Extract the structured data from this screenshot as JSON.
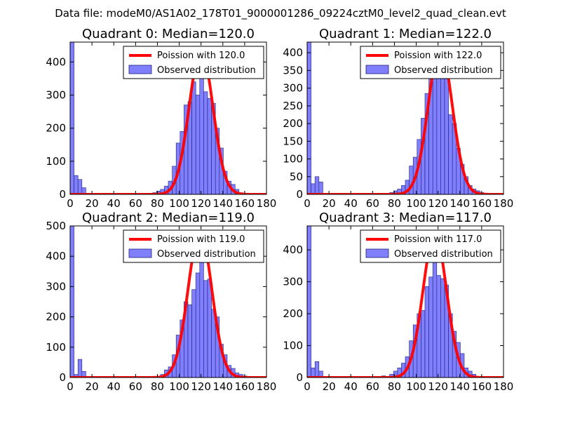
{
  "figure": {
    "suptitle": "Data file: modeM0/AS1A02_178T01_9000001286_09224cztM0_level2_quad_clean.evt"
  },
  "colors": {
    "bar_fill": "#8080ff",
    "bar_edge": "#1f1f7a",
    "curve": "#ff0000"
  },
  "chart_data": [
    {
      "type": "bar",
      "title": "Quadrant 0: Median=120.0",
      "xlim": [
        0,
        180
      ],
      "ylim": [
        0,
        460
      ],
      "xticks": [
        0,
        20,
        40,
        60,
        80,
        100,
        120,
        140,
        160,
        180
      ],
      "yticks": [
        0,
        100,
        200,
        300,
        400
      ],
      "median": 120.0,
      "bin_width": 3.6,
      "bins_x": [
        0,
        3.6,
        7.2,
        10.8,
        75.6,
        79.2,
        82.8,
        86.4,
        90,
        93.6,
        97.2,
        100.8,
        104.4,
        108,
        111.6,
        115.2,
        118.8,
        122.4,
        126,
        129.6,
        133.2,
        136.8,
        140.4,
        144,
        147.6,
        151.2,
        154.8
      ],
      "bins_y": [
        460,
        57,
        45,
        20,
        5,
        10,
        15,
        25,
        40,
        85,
        155,
        190,
        270,
        280,
        340,
        300,
        355,
        310,
        290,
        275,
        200,
        140,
        70,
        40,
        30,
        15,
        5
      ],
      "legend": [
        "Poission with 120.0",
        "Observed distribution"
      ],
      "curve_peak": 435
    },
    {
      "type": "bar",
      "title": "Quadrant 1: Median=122.0",
      "xlim": [
        0,
        180
      ],
      "ylim": [
        0,
        430
      ],
      "xticks": [
        0,
        20,
        40,
        60,
        80,
        100,
        120,
        140,
        160,
        180
      ],
      "yticks": [
        0,
        50,
        100,
        150,
        200,
        250,
        300,
        350,
        400
      ],
      "median": 122.0,
      "bin_width": 3.6,
      "bins_x": [
        0,
        3.6,
        7.2,
        10.8,
        75.6,
        79.2,
        82.8,
        86.4,
        90,
        93.6,
        97.2,
        100.8,
        104.4,
        108,
        111.6,
        115.2,
        118.8,
        122.4,
        126,
        129.6,
        133.2,
        136.8,
        140.4,
        144,
        147.6,
        151.2,
        154.8,
        158.4
      ],
      "bins_y": [
        430,
        30,
        50,
        35,
        5,
        10,
        15,
        25,
        40,
        80,
        105,
        155,
        215,
        285,
        330,
        380,
        400,
        330,
        370,
        225,
        200,
        130,
        85,
        50,
        25,
        15,
        10,
        5
      ],
      "legend": [
        "Poission with 122.0",
        "Observed distribution"
      ],
      "curve_peak": 415
    },
    {
      "type": "bar",
      "title": "Quadrant 2: Median=119.0",
      "xlim": [
        0,
        180
      ],
      "ylim": [
        0,
        500
      ],
      "xticks": [
        0,
        20,
        40,
        60,
        80,
        100,
        120,
        140,
        160,
        180
      ],
      "yticks": [
        0,
        100,
        200,
        300,
        400,
        500
      ],
      "median": 119.0,
      "bin_width": 3.6,
      "bins_x": [
        0,
        3.6,
        7.2,
        10.8,
        82.8,
        86.4,
        90,
        93.6,
        97.2,
        100.8,
        104.4,
        108,
        111.6,
        115.2,
        118.8,
        122.4,
        126,
        129.6,
        133.2,
        136.8,
        140.4,
        144,
        147.6,
        151.2,
        154.8,
        158.4
      ],
      "bins_y": [
        500,
        10,
        60,
        20,
        10,
        25,
        35,
        75,
        140,
        190,
        250,
        240,
        290,
        345,
        380,
        320,
        325,
        225,
        200,
        110,
        75,
        40,
        30,
        15,
        10,
        5
      ],
      "legend": [
        "Poission with 119.0",
        "Observed distribution"
      ],
      "curve_peak": 480
    },
    {
      "type": "bar",
      "title": "Quadrant 3: Median=117.0",
      "xlim": [
        0,
        180
      ],
      "ylim": [
        0,
        475
      ],
      "xticks": [
        0,
        20,
        40,
        60,
        80,
        100,
        120,
        140,
        160,
        180
      ],
      "yticks": [
        0,
        100,
        200,
        300,
        400
      ],
      "median": 117.0,
      "bin_width": 3.6,
      "bins_x": [
        0,
        3.6,
        7.2,
        10.8,
        68.4,
        75.6,
        79.2,
        82.8,
        86.4,
        90,
        93.6,
        97.2,
        100.8,
        104.4,
        108,
        111.6,
        115.2,
        118.8,
        122.4,
        126,
        129.6,
        133.2,
        136.8,
        140.4,
        144,
        147.6,
        151.2
      ],
      "bins_y": [
        475,
        30,
        50,
        20,
        5,
        10,
        20,
        30,
        45,
        65,
        115,
        165,
        200,
        210,
        285,
        315,
        370,
        320,
        310,
        290,
        200,
        145,
        110,
        75,
        30,
        20,
        10
      ],
      "legend": [
        "Poission with 117.0",
        "Observed distribution"
      ],
      "curve_peak": 450
    }
  ]
}
